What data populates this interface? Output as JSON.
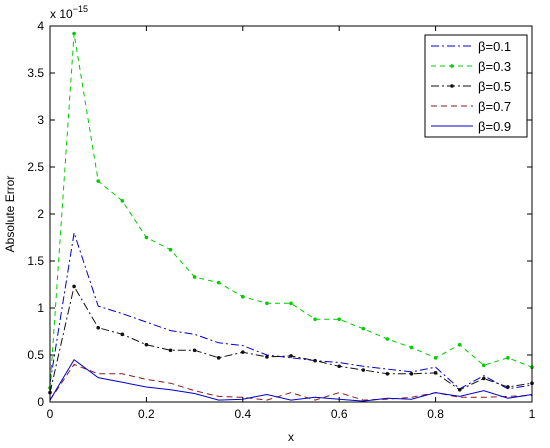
{
  "chart_data": {
    "type": "line",
    "xlabel": "x",
    "ylabel": "Absolute Error",
    "y_exponent_label": "x 10",
    "y_exponent_power": "−15",
    "xlim": [
      0,
      1
    ],
    "ylim": [
      0,
      4
    ],
    "xticks": [
      "0",
      "0.2",
      "0.4",
      "0.6",
      "0.8",
      "1"
    ],
    "yticks": [
      "0",
      "0.5",
      "1",
      "1.5",
      "2",
      "2.5",
      "3",
      "3.5",
      "4"
    ],
    "legend_position": "top-right",
    "x": [
      0,
      0.05,
      0.1,
      0.15,
      0.2,
      0.25,
      0.3,
      0.35,
      0.4,
      0.45,
      0.5,
      0.55,
      0.6,
      0.65,
      0.7,
      0.75,
      0.8,
      0.85,
      0.9,
      0.95,
      1.0
    ],
    "series": [
      {
        "name": "β=0.1",
        "color": "#0000cc",
        "dash": "8,3,2,3",
        "marker": "none",
        "values": [
          0.2,
          1.8,
          1.02,
          0.94,
          0.85,
          0.76,
          0.72,
          0.63,
          0.6,
          0.5,
          0.47,
          0.44,
          0.42,
          0.38,
          0.35,
          0.32,
          0.37,
          0.14,
          0.28,
          0.14,
          0.18
        ]
      },
      {
        "name": "β=0.3",
        "color": "#00cc00",
        "dash": "5,4",
        "marker": "dot",
        "values": [
          0.15,
          3.92,
          2.35,
          2.14,
          1.75,
          1.62,
          1.33,
          1.27,
          1.12,
          1.05,
          1.05,
          0.88,
          0.88,
          0.78,
          0.67,
          0.58,
          0.47,
          0.61,
          0.39,
          0.47,
          0.37
        ]
      },
      {
        "name": "β=0.5",
        "color": "#111111",
        "dash": "8,3,2,3",
        "marker": "dot",
        "values": [
          0.1,
          1.23,
          0.79,
          0.72,
          0.61,
          0.55,
          0.55,
          0.47,
          0.53,
          0.48,
          0.49,
          0.44,
          0.38,
          0.34,
          0.3,
          0.3,
          0.31,
          0.13,
          0.25,
          0.16,
          0.2
        ]
      },
      {
        "name": "β=0.7",
        "color": "#8b1a1a",
        "dash": "6,4",
        "marker": "none",
        "values": [
          0.02,
          0.4,
          0.3,
          0.3,
          0.24,
          0.2,
          0.12,
          0.06,
          0.05,
          0.02,
          0.1,
          0.02,
          0.1,
          0.02,
          0.03,
          0.05,
          0.1,
          0.05,
          0.05,
          0.06,
          0.07
        ]
      },
      {
        "name": "β=0.9",
        "color": "#0000cc",
        "dash": "",
        "marker": "none",
        "values": [
          0.02,
          0.45,
          0.26,
          0.21,
          0.16,
          0.13,
          0.09,
          0.02,
          0.03,
          0.08,
          0.02,
          0.05,
          0.03,
          0.01,
          0.04,
          0.03,
          0.1,
          0.06,
          0.12,
          0.04,
          0.08
        ]
      }
    ]
  }
}
